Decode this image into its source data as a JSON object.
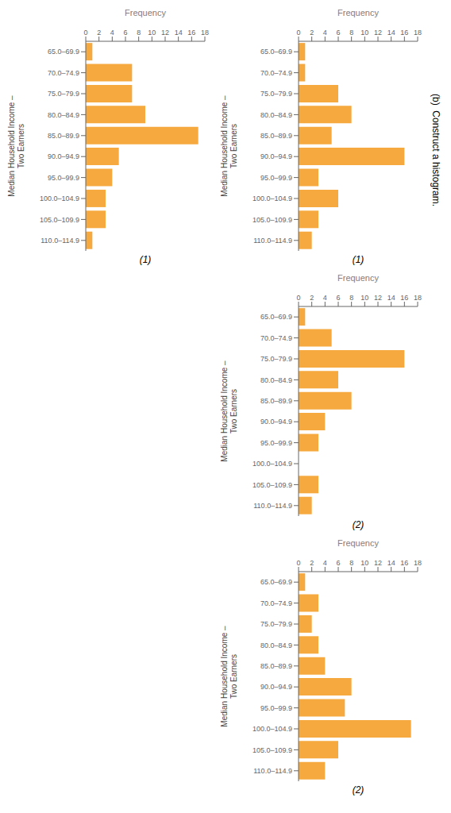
{
  "chart_data": [
    {
      "type": "bar",
      "orientation": "horizontal",
      "categories": [
        "65.0–69.9",
        "70.0–74.9",
        "75.0–79.9",
        "80.0–84.9",
        "85.0–89.9",
        "90.0–94.9",
        "95.0–99.9",
        "100.0–104.9",
        "105.0–109.9",
        "110.0–114.9"
      ],
      "values": [
        1,
        7,
        7,
        9,
        17,
        5,
        4,
        3,
        3,
        1
      ],
      "color": "#F5A93E",
      "xlabel": "Frequency",
      "ylabel": "Median Household Income –\nTwo Earners",
      "xlim": [
        0,
        18
      ],
      "xticks": [
        0,
        2,
        4,
        6,
        8,
        10,
        12,
        14,
        16,
        18
      ],
      "grid": false,
      "annotation": "(1)"
    },
    {
      "type": "bar",
      "orientation": "horizontal",
      "categories": [
        "65.0–69.9",
        "70.0–74.9",
        "75.0–79.9",
        "80.0–84.9",
        "85.0–89.9",
        "90.0–94.9",
        "95.0–99.9",
        "100.0–104.9",
        "105.0–109.9",
        "110.0–114.9"
      ],
      "values": [
        1,
        1,
        6,
        8,
        5,
        16,
        3,
        6,
        3,
        2
      ],
      "color": "#F5A93E",
      "xlabel": "Frequency",
      "ylabel": "Median Household Income –\nTwo Earners",
      "xlim": [
        0,
        18
      ],
      "xticks": [
        0,
        2,
        4,
        6,
        8,
        10,
        12,
        14,
        16,
        18
      ],
      "grid": false,
      "annotation": "(1)"
    },
    {
      "type": "bar",
      "orientation": "horizontal",
      "categories": [
        "65.0–69.9",
        "70.0–74.9",
        "75.0–79.9",
        "80.0–84.9",
        "85.0–89.9",
        "90.0–94.9",
        "95.0–99.9",
        "100.0–104.9",
        "105.0–109.9",
        "110.0–114.9"
      ],
      "values": [
        1,
        5,
        16,
        6,
        8,
        4,
        3,
        0,
        3,
        2
      ],
      "color": "#F5A93E",
      "xlabel": "Frequency",
      "ylabel": "Median Household Income –\nTwo Earners",
      "xlim": [
        0,
        18
      ],
      "xticks": [
        0,
        2,
        4,
        6,
        8,
        10,
        12,
        14,
        16,
        18
      ],
      "grid": false,
      "annotation": "(2)"
    },
    {
      "type": "bar",
      "orientation": "horizontal",
      "categories": [
        "65.0–69.9",
        "70.0–74.9",
        "75.0–79.9",
        "80.0–84.9",
        "85.0–89.9",
        "90.0–94.9",
        "95.0–99.9",
        "100.0–104.9",
        "105.0–109.9",
        "110.0–114.9"
      ],
      "values": [
        1,
        3,
        2,
        3,
        4,
        8,
        7,
        17,
        6,
        4
      ],
      "color": "#F5A93E",
      "xlabel": "Frequency",
      "ylabel": "Median Household Income –\nTwo Earners",
      "xlim": [
        0,
        18
      ],
      "xticks": [
        0,
        2,
        4,
        6,
        8,
        10,
        12,
        14,
        16,
        18
      ],
      "grid": false,
      "annotation": "(2)"
    }
  ],
  "annotation": "(b)  Construct a histogram."
}
